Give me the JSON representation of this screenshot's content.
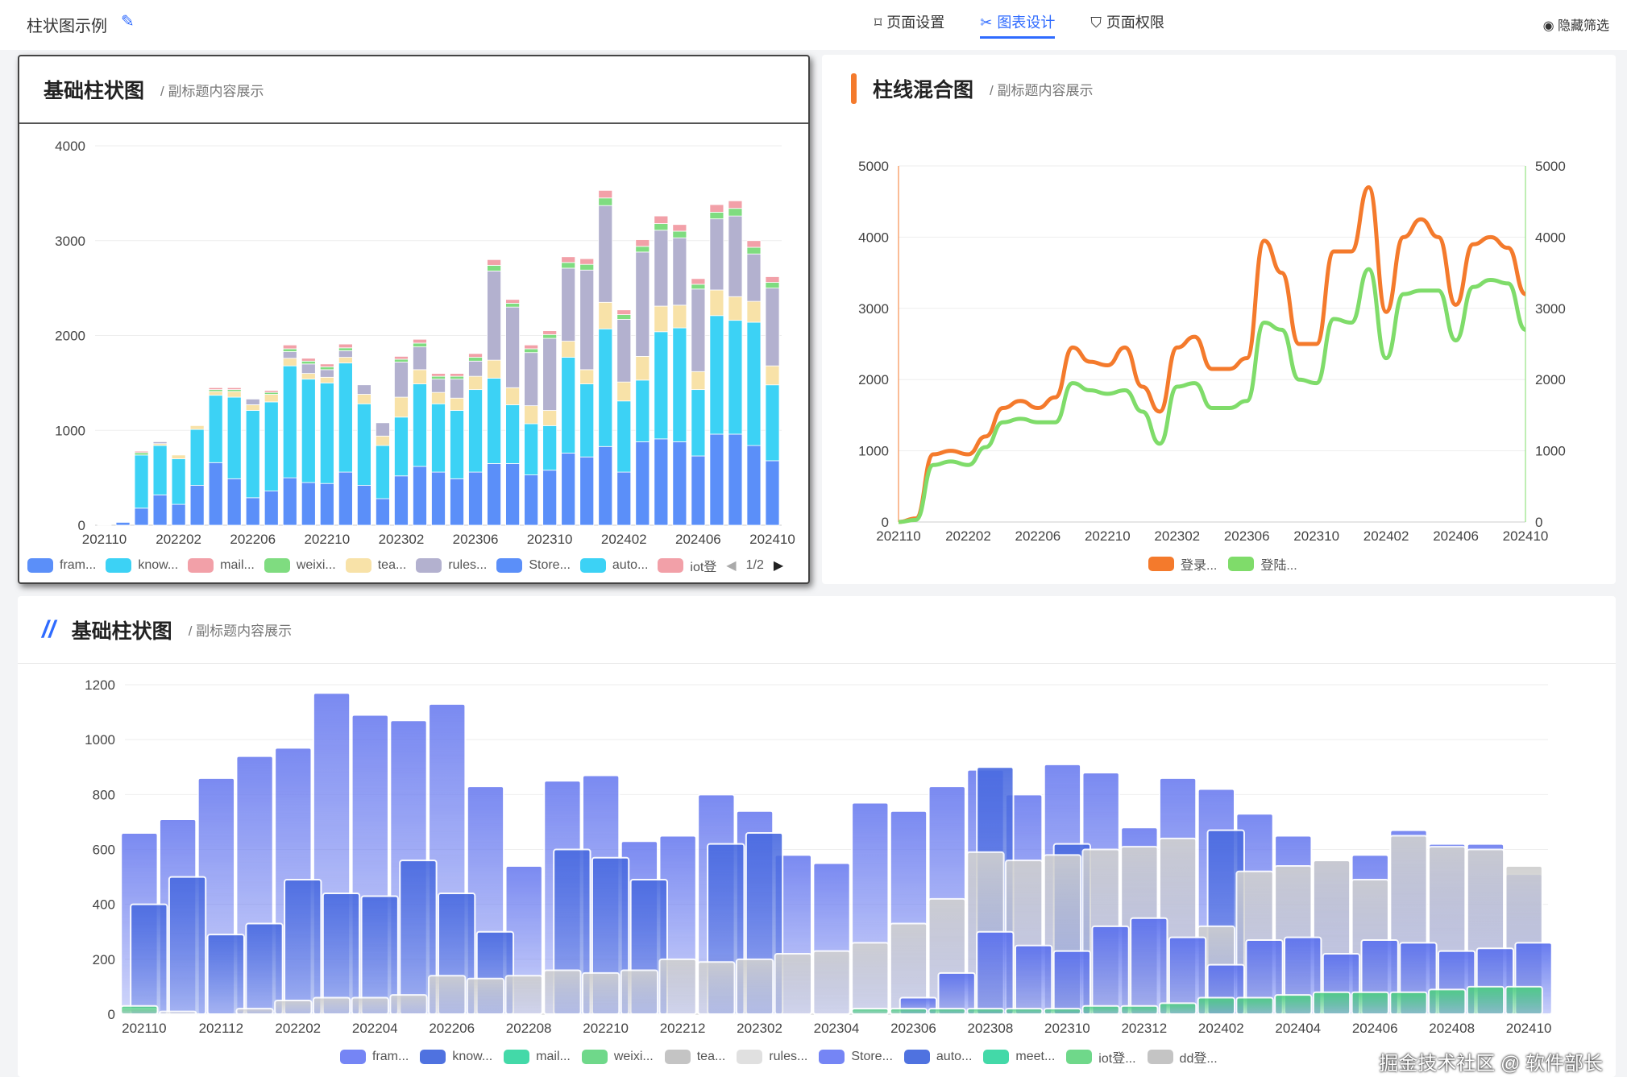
{
  "header": {
    "title": "柱状图示例",
    "tabs": [
      {
        "label": "页面设置",
        "icon": "bookmark-icon"
      },
      {
        "label": "图表设计",
        "icon": "design-icon"
      },
      {
        "label": "页面权限",
        "icon": "shield-icon"
      }
    ],
    "hide_filter": "隐藏筛选"
  },
  "watermark": "掘金技术社区 @ 软件部长",
  "cards": [
    {
      "title": "基础柱状图",
      "subtitle": "/ 副标题内容展示",
      "pager": "1/2"
    },
    {
      "title": "柱线混合图",
      "subtitle": "/ 副标题内容展示"
    },
    {
      "title": "基础柱状图",
      "subtitle": "/ 副标题内容展示"
    }
  ],
  "chart_data": [
    {
      "type": "bar",
      "stacked": true,
      "title": "基础柱状图",
      "ylim": [
        0,
        4000
      ],
      "yticks": [
        "0",
        "1000",
        "2000",
        "3000",
        "4000"
      ],
      "xticks": [
        "202110",
        "202202",
        "202206",
        "202210",
        "202302",
        "202306",
        "202310",
        "202402",
        "202406",
        "202410"
      ],
      "x_count": 37,
      "legend": [
        "fram...",
        "know...",
        "mail...",
        "weixi...",
        "tea...",
        "rules...",
        "Store...",
        "auto...",
        "iot登"
      ],
      "series": [
        {
          "name": "fram",
          "color": "#5b8ff9",
          "values": [
            5,
            30,
            180,
            320,
            220,
            420,
            660,
            490,
            290,
            360,
            500,
            450,
            440,
            560,
            420,
            280,
            520,
            620,
            560,
            490,
            560,
            650,
            650,
            530,
            580,
            760,
            720,
            830,
            560,
            880,
            910,
            880,
            730,
            960,
            960,
            840,
            680
          ]
        },
        {
          "name": "know",
          "color": "#3cd2f5",
          "values": [
            0,
            0,
            560,
            520,
            480,
            590,
            710,
            860,
            920,
            940,
            1180,
            1090,
            1060,
            1150,
            860,
            560,
            620,
            870,
            720,
            720,
            870,
            900,
            620,
            540,
            470,
            1010,
            770,
            1240,
            750,
            650,
            1130,
            1200,
            700,
            1250,
            1200,
            1300,
            800
          ]
        },
        {
          "name": "tea",
          "color": "#f8e2a8",
          "values": [
            0,
            0,
            0,
            20,
            40,
            40,
            40,
            60,
            60,
            80,
            80,
            60,
            60,
            60,
            100,
            100,
            210,
            150,
            120,
            130,
            140,
            190,
            180,
            190,
            160,
            170,
            150,
            280,
            200,
            250,
            270,
            240,
            190,
            270,
            250,
            220,
            200
          ]
        },
        {
          "name": "rules",
          "color": "#b3b1cf",
          "values": [
            0,
            0,
            0,
            20,
            0,
            0,
            0,
            0,
            60,
            0,
            70,
            100,
            80,
            70,
            100,
            140,
            370,
            240,
            140,
            200,
            160,
            940,
            850,
            560,
            760,
            770,
            1050,
            1020,
            660,
            1100,
            800,
            710,
            870,
            750,
            850,
            500,
            820
          ]
        },
        {
          "name": "weixi",
          "color": "#7fdc80",
          "values": [
            0,
            0,
            25,
            0,
            0,
            0,
            20,
            20,
            0,
            20,
            30,
            30,
            30,
            30,
            0,
            0,
            30,
            40,
            30,
            30,
            40,
            60,
            40,
            40,
            40,
            60,
            60,
            80,
            50,
            60,
            70,
            70,
            50,
            70,
            80,
            70,
            60
          ]
        },
        {
          "name": "mail",
          "color": "#f2a0a8",
          "values": [
            0,
            0,
            15,
            0,
            0,
            0,
            20,
            20,
            0,
            20,
            40,
            30,
            30,
            40,
            0,
            0,
            30,
            40,
            30,
            30,
            40,
            60,
            40,
            40,
            40,
            60,
            60,
            80,
            50,
            70,
            80,
            70,
            60,
            80,
            80,
            70,
            60
          ]
        }
      ]
    },
    {
      "type": "line",
      "title": "柱线混合图",
      "ylim": [
        0,
        5000
      ],
      "yticks": [
        "0",
        "1000",
        "2000",
        "3000",
        "4000",
        "5000"
      ],
      "xticks": [
        "202110",
        "202202",
        "202206",
        "202210",
        "202302",
        "202306",
        "202310",
        "202402",
        "202406",
        "202410"
      ],
      "x_count": 37,
      "legend": [
        "登录...",
        "登陆..."
      ],
      "series": [
        {
          "name": "登录",
          "color": "#f47a2c",
          "values": [
            0,
            50,
            950,
            1000,
            950,
            1200,
            1600,
            1700,
            1600,
            1750,
            2450,
            2250,
            2200,
            2450,
            1900,
            1550,
            2450,
            2600,
            2150,
            2150,
            2300,
            3950,
            3500,
            2500,
            2500,
            3800,
            3800,
            4700,
            2950,
            4000,
            4250,
            4000,
            3050,
            3900,
            4000,
            3850,
            3200
          ]
        },
        {
          "name": "登陆",
          "color": "#7fdc6a",
          "values": [
            0,
            30,
            800,
            850,
            800,
            1050,
            1400,
            1450,
            1400,
            1400,
            1950,
            1850,
            1800,
            1850,
            1550,
            1100,
            1900,
            1950,
            1600,
            1600,
            1700,
            2800,
            2700,
            2000,
            1950,
            2850,
            2800,
            3550,
            2300,
            3200,
            3250,
            3250,
            2550,
            3300,
            3400,
            3350,
            2700
          ]
        }
      ]
    },
    {
      "type": "bar",
      "stacked": false,
      "title": "基础柱状图",
      "ylim": [
        0,
        1200
      ],
      "yticks": [
        "0",
        "200",
        "400",
        "600",
        "800",
        "1000",
        "1200"
      ],
      "xticks": [
        "202110",
        "202112",
        "202202",
        "202204",
        "202206",
        "202208",
        "202210",
        "202212",
        "202302",
        "202304",
        "202306",
        "202308",
        "202310",
        "202312",
        "202402",
        "202404",
        "202406",
        "202408",
        "202410"
      ],
      "x_count": 37,
      "legend": [
        {
          "l": "fram...",
          "c": "#7585f5"
        },
        {
          "l": "know...",
          "c": "#4f72e0"
        },
        {
          "l": "mail...",
          "c": "#43d9a8"
        },
        {
          "l": "weixi...",
          "c": "#6fd88a"
        },
        {
          "l": "tea...",
          "c": "#c4c4c4"
        },
        {
          "l": "rules...",
          "c": "#e0e0e0"
        },
        {
          "l": "Store...",
          "c": "#7585f5"
        },
        {
          "l": "auto...",
          "c": "#4f72e0"
        },
        {
          "l": "meet...",
          "c": "#43d9a8"
        },
        {
          "l": "iot登...",
          "c": "#6fd88a"
        },
        {
          "l": "dd登...",
          "c": "#c4c4c4"
        }
      ],
      "series": [
        {
          "name": "fram",
          "color": "#6f80f0",
          "values": [
            660,
            710,
            860,
            940,
            970,
            1170,
            1090,
            1070,
            1130,
            830,
            540,
            850,
            870,
            630,
            650,
            800,
            740,
            580,
            550,
            770,
            740,
            830,
            890,
            800,
            910,
            880,
            680,
            860,
            820,
            730,
            650,
            560,
            580,
            670,
            620,
            620,
            510
          ]
        },
        {
          "name": "know",
          "color": "#4a6be0",
          "values": [
            400,
            500,
            290,
            330,
            490,
            440,
            430,
            560,
            440,
            300,
            0,
            600,
            570,
            490,
            0,
            620,
            660,
            0,
            0,
            0,
            0,
            0,
            900,
            0,
            620,
            0,
            0,
            0,
            670,
            0,
            0,
            0,
            0,
            0,
            0,
            0,
            0
          ]
        },
        {
          "name": "tea",
          "color": "#cfcfcf",
          "values": [
            20,
            10,
            0,
            20,
            50,
            60,
            60,
            70,
            140,
            130,
            140,
            160,
            150,
            160,
            200,
            190,
            200,
            220,
            230,
            260,
            330,
            420,
            590,
            560,
            580,
            600,
            610,
            640,
            320,
            520,
            540,
            560,
            490,
            650,
            610,
            600,
            540
          ]
        },
        {
          "name": "Store",
          "color": "#5a70ee",
          "values": [
            0,
            0,
            0,
            0,
            0,
            0,
            0,
            0,
            0,
            0,
            0,
            0,
            0,
            0,
            0,
            0,
            0,
            0,
            0,
            0,
            60,
            150,
            300,
            250,
            230,
            320,
            350,
            280,
            180,
            270,
            280,
            220,
            270,
            260,
            230,
            240,
            260
          ]
        },
        {
          "name": "iot",
          "color": "#4ccf80",
          "values": [
            30,
            0,
            0,
            0,
            0,
            0,
            0,
            0,
            0,
            0,
            0,
            0,
            0,
            0,
            0,
            0,
            0,
            0,
            0,
            20,
            20,
            20,
            20,
            20,
            20,
            30,
            30,
            40,
            60,
            60,
            70,
            80,
            80,
            80,
            90,
            100,
            100
          ]
        }
      ]
    }
  ]
}
